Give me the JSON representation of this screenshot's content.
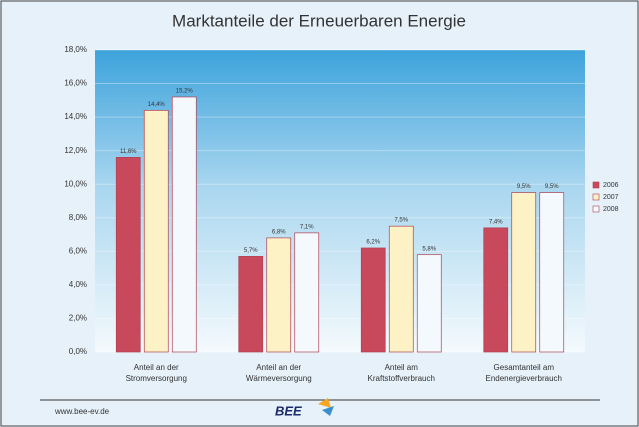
{
  "chart_data": {
    "type": "bar",
    "title": "Marktanteile der Erneuerbaren Energie",
    "categories": [
      "Anteil an der Stromversorgung",
      "Anteil an der Wärmeversorgung",
      "Anteil am Kraftstoffverbrauch",
      "Gesamtanteil am Endenergieverbrauch"
    ],
    "series": [
      {
        "name": "2006",
        "color": "#c8485c",
        "values": [
          11.6,
          5.7,
          6.2,
          7.4
        ],
        "value_labels": [
          "11,6%",
          "5,7%",
          "6,2%",
          "7,4%"
        ]
      },
      {
        "name": "2007",
        "color": "#fdf2c6",
        "values": [
          14.4,
          6.8,
          7.5,
          9.5
        ],
        "value_labels": [
          "14,4%",
          "6,8%",
          "7,5%",
          "9,5%"
        ]
      },
      {
        "name": "2008",
        "color": "#f4f9fd",
        "values": [
          15.2,
          7.1,
          5.8,
          9.5
        ],
        "value_labels": [
          "15,2%",
          "7,1%",
          "5,8%",
          "9,5%"
        ]
      }
    ],
    "ylim": [
      0,
      18
    ],
    "yticks": [
      {
        "value": 0,
        "label": "0,0%"
      },
      {
        "value": 2,
        "label": "2,0%"
      },
      {
        "value": 4,
        "label": "4,0%"
      },
      {
        "value": 6,
        "label": "6,0%"
      },
      {
        "value": 8,
        "label": "8,0%"
      },
      {
        "value": 10,
        "label": "10,0%"
      },
      {
        "value": 12,
        "label": "12,0%"
      },
      {
        "value": 14,
        "label": "14,0%"
      },
      {
        "value": 16,
        "label": "16,0%"
      },
      {
        "value": 18,
        "label": "18,0%"
      }
    ],
    "grid": true,
    "legend": "right",
    "footer": "www.bee-ev.de",
    "logo": "BEE"
  }
}
